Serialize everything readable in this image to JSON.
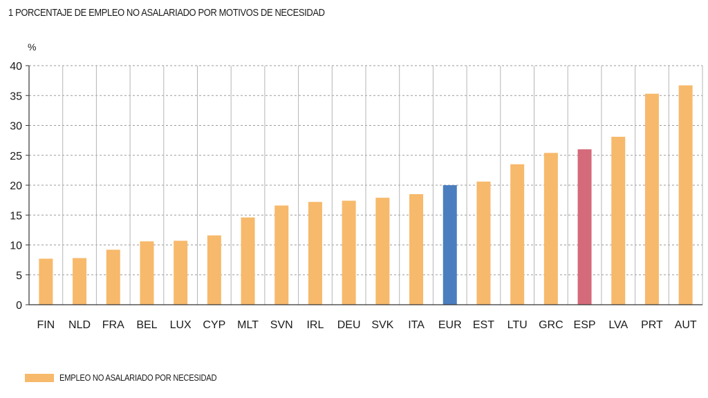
{
  "title": "1  PORCENTAJE DE EMPLEO NO ASALARIADO POR MOTIVOS DE NECESIDAD",
  "legend": {
    "label": "EMPLEO NO ASALARIADO POR NECESIDAD",
    "color": "#F7B96B"
  },
  "colors": {
    "default": "#F7B96B",
    "EUR": "#4A7EBF",
    "ESP": "#D56A7B",
    "grid": "#9a9a9a",
    "axis": "#333333"
  },
  "chart_data": {
    "type": "bar",
    "title": "1  PORCENTAJE DE EMPLEO NO ASALARIADO POR MOTIVOS DE NECESIDAD",
    "xlabel": "",
    "ylabel": "%",
    "ylim": [
      0,
      40
    ],
    "yticks": [
      0,
      5,
      10,
      15,
      20,
      25,
      30,
      35,
      40
    ],
    "grid": true,
    "legend_position": "bottom-left",
    "categories": [
      "FIN",
      "NLD",
      "FRA",
      "BEL",
      "LUX",
      "CYP",
      "MLT",
      "SVN",
      "IRL",
      "DEU",
      "SVK",
      "ITA",
      "EUR",
      "EST",
      "LTU",
      "GRC",
      "ESP",
      "LVA",
      "PRT",
      "AUT"
    ],
    "series": [
      {
        "name": "EMPLEO NO ASALARIADO POR NECESIDAD",
        "values": [
          7.7,
          7.8,
          9.2,
          10.6,
          10.7,
          11.6,
          14.6,
          16.6,
          17.2,
          17.4,
          17.9,
          18.5,
          20.0,
          20.6,
          23.5,
          25.4,
          26.0,
          28.1,
          35.3,
          36.7
        ]
      }
    ]
  }
}
